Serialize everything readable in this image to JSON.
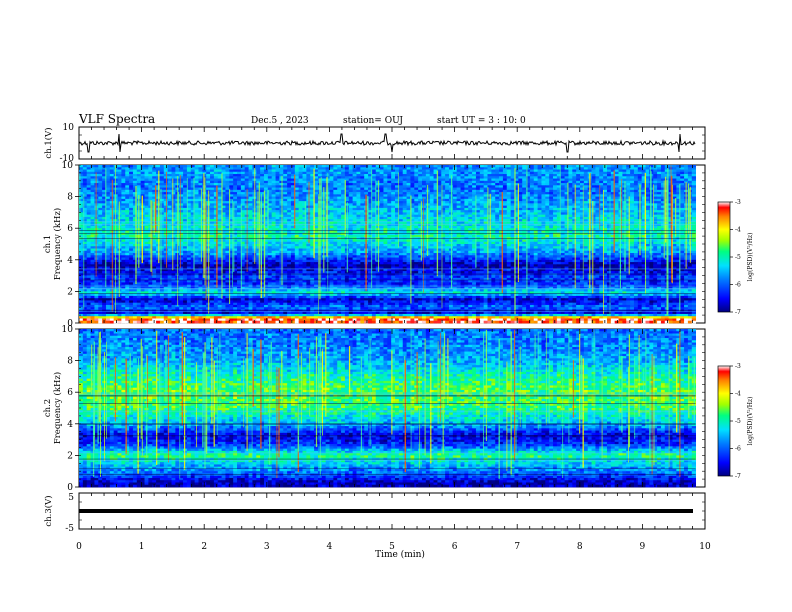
{
  "header": {
    "title": "VLF Spectra",
    "date": "Dec.5 , 2023",
    "station": "station= OUJ",
    "start": "start UT = 3 : 10: 0"
  },
  "colors": {
    "colormap": [
      "#00007f",
      "#0000ff",
      "#0080ff",
      "#00e0ff",
      "#00ff80",
      "#a0ff00",
      "#ffff00",
      "#ff8000",
      "#ff0000",
      "#ffffff"
    ]
  },
  "chart_data": [
    {
      "type": "line",
      "name": "ch1-waveform",
      "ylabel": "ch.1(V)",
      "ylim": [
        -10,
        10
      ],
      "yticklabels": [
        "10",
        "-10"
      ],
      "xlim": [
        0,
        10
      ],
      "baseline_level": 0,
      "spike_times_min": [
        0.15,
        0.65,
        4.2,
        4.9,
        5.0,
        7.8,
        9.6
      ]
    },
    {
      "type": "heatmap",
      "name": "ch1-spectrogram",
      "ylabel": "ch.1 Frequency (kHz)",
      "ylim": [
        0,
        10
      ],
      "yticks": [
        0,
        2,
        4,
        6,
        8,
        10
      ],
      "xlim": [
        0,
        9.85
      ],
      "colorbar": {
        "label": "log(PSD)(V²/Hz)",
        "range": [
          -7,
          -3
        ],
        "ticks": [
          "-3",
          "-4",
          "-5",
          "-6",
          "-7"
        ]
      },
      "profile": [
        {
          "f": 0.3,
          "v": -3.2
        },
        {
          "f": 0.6,
          "v": -6.6
        },
        {
          "f": 1.0,
          "v": -5.9
        },
        {
          "f": 1.5,
          "v": -6.7
        },
        {
          "f": 1.9,
          "v": -5.1
        },
        {
          "f": 2.4,
          "v": -6.3
        },
        {
          "f": 3.0,
          "v": -6.2
        },
        {
          "f": 3.6,
          "v": -6.9
        },
        {
          "f": 4.5,
          "v": -5.6
        },
        {
          "f": 5.5,
          "v": -5.0
        },
        {
          "f": 6.5,
          "v": -5.3
        },
        {
          "f": 7.5,
          "v": -5.6
        },
        {
          "f": 8.5,
          "v": -5.9
        },
        {
          "f": 9.5,
          "v": -5.7
        }
      ]
    },
    {
      "type": "heatmap",
      "name": "ch2-spectrogram",
      "ylabel": "ch.2 Frequency (kHz)",
      "ylim": [
        0,
        10
      ],
      "yticks": [
        0,
        2,
        4,
        6,
        8,
        10
      ],
      "xlim": [
        0,
        9.85
      ],
      "colorbar": {
        "label": "log(PSD)(V²/Hz)",
        "range": [
          -7,
          -3
        ],
        "ticks": [
          "-3",
          "-4",
          "-5",
          "-6",
          "-7"
        ]
      },
      "profile": [
        {
          "f": 0.3,
          "v": -6.8
        },
        {
          "f": 0.8,
          "v": -6.0
        },
        {
          "f": 1.5,
          "v": -5.4
        },
        {
          "f": 2.0,
          "v": -4.8
        },
        {
          "f": 2.7,
          "v": -6.3
        },
        {
          "f": 3.3,
          "v": -6.6
        },
        {
          "f": 4.0,
          "v": -5.5
        },
        {
          "f": 5.0,
          "v": -4.8
        },
        {
          "f": 6.0,
          "v": -4.6
        },
        {
          "f": 7.0,
          "v": -5.0
        },
        {
          "f": 8.0,
          "v": -5.6
        },
        {
          "f": 9.0,
          "v": -5.8
        },
        {
          "f": 9.8,
          "v": -5.9
        }
      ]
    },
    {
      "type": "line",
      "name": "ch3-waveform",
      "ylabel": "ch.3(V)",
      "ylim": [
        -5,
        5
      ],
      "yticklabels": [
        "5",
        "-5"
      ],
      "xlim": [
        0,
        10
      ],
      "baseline_level": 0,
      "xlabel": "Time (min)",
      "xticks": [
        0,
        1,
        2,
        3,
        4,
        5,
        6,
        7,
        8,
        9,
        10
      ]
    }
  ]
}
